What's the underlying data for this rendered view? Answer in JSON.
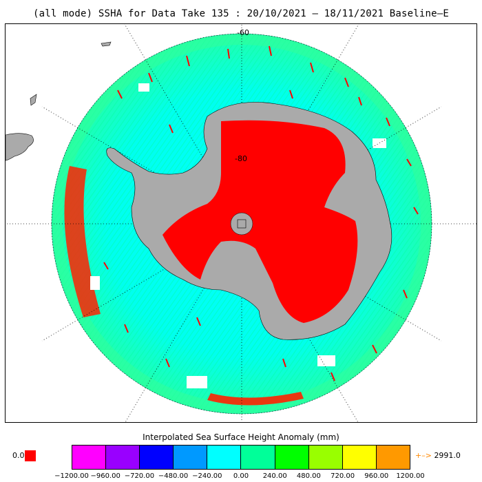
{
  "title": "(all mode) SSHA for Data Take 135 : 20/10/2021 – 18/11/2021 Baseline–E",
  "map": {
    "labels": {
      "lat_outer": "-60",
      "lat_inner": "-80"
    },
    "colors": {
      "land": "#aaaaaa",
      "ice_shelf_red": "#ff0000",
      "ocean_dominant": "#00ffff"
    }
  },
  "colorbar": {
    "title": "Interpolated Sea Surface Height Anomaly (mm)",
    "colors": [
      "#ff00ff",
      "#9900ff",
      "#0000ff",
      "#0099ff",
      "#00ffff",
      "#00ff99",
      "#00ff00",
      "#99ff00",
      "#ffff00",
      "#ff9900"
    ],
    "ticks": [
      "−1200.00",
      "−960.00",
      "−720.00",
      "−480.00",
      "−240.00",
      "0.00",
      "240.00",
      "480.00",
      "720.00",
      "960.00",
      "1200.00"
    ],
    "under_value": "0.0",
    "under_color": "#ff0000",
    "over_arrow": "+–>",
    "over_value": "2991.0"
  }
}
